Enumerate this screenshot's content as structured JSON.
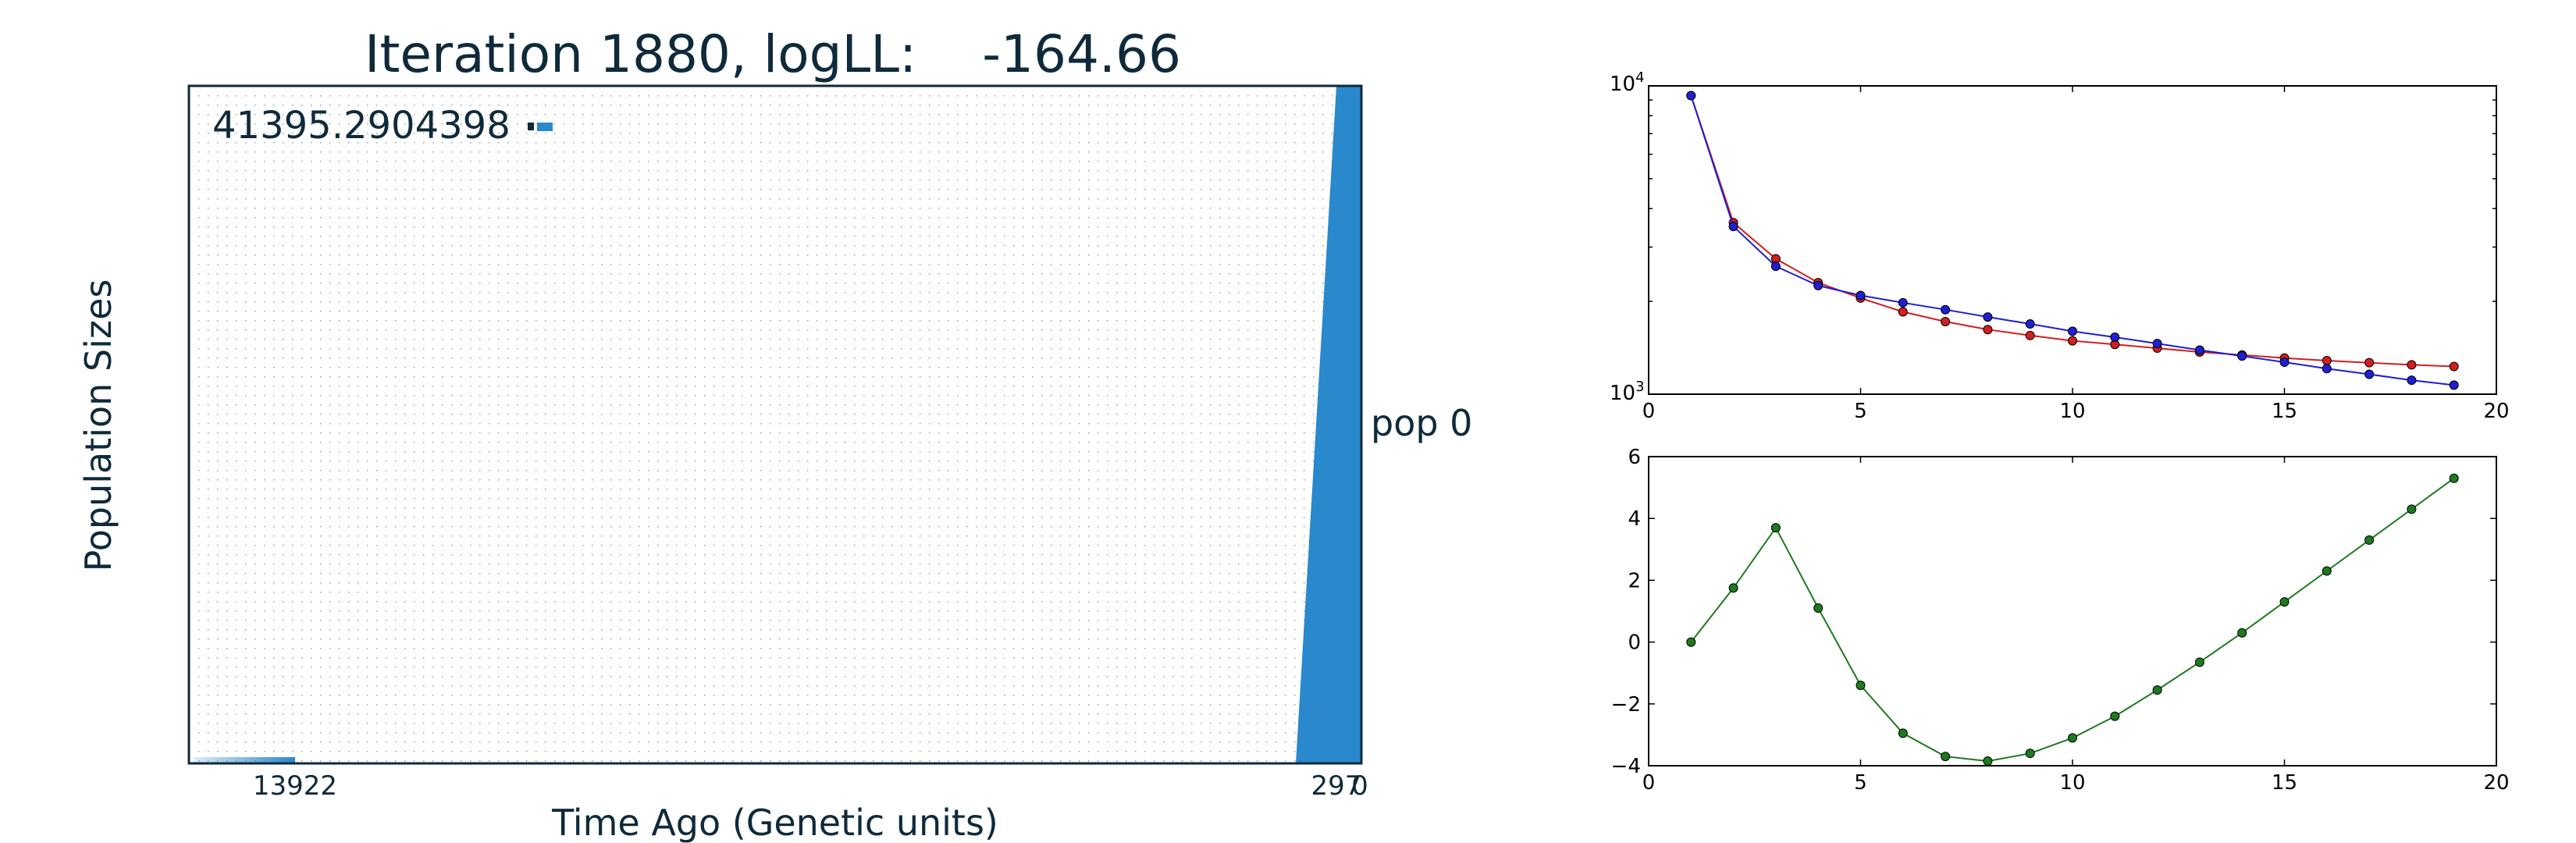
{
  "colors": {
    "text": "#0f2a3a",
    "fill": "#2a88cc",
    "red": "#d21f1f",
    "blue": "#1f1fd2",
    "green": "#1e7a1e"
  },
  "chart_data": [
    {
      "type": "area",
      "title": "Iteration 1880, logLL:    -164.66",
      "xlabel": "Time Ago (Genetic units)",
      "ylabel": "Population Sizes",
      "max_label": "41395.2904398",
      "x_tick_labels": [
        "13922",
        "297",
        "0"
      ],
      "population_label": "pop 0",
      "grid": true
    },
    {
      "type": "line",
      "yscale": "log",
      "xlim": [
        0,
        20
      ],
      "ylim": [
        1000,
        10000
      ],
      "x_ticks": [
        0,
        5,
        10,
        15,
        20
      ],
      "y_tick_labels": [
        {
          "base": "10",
          "exp": "4"
        },
        {
          "base": "10",
          "exp": "3"
        }
      ],
      "x": [
        1,
        2,
        3,
        4,
        5,
        6,
        7,
        8,
        9,
        10,
        11,
        12,
        13,
        14,
        15,
        16,
        17,
        18,
        19
      ],
      "series": [
        {
          "color": "red",
          "values": [
            9300,
            3600,
            2750,
            2300,
            2050,
            1850,
            1720,
            1620,
            1550,
            1490,
            1450,
            1410,
            1370,
            1340,
            1310,
            1285,
            1265,
            1245,
            1230
          ]
        },
        {
          "color": "blue",
          "values": [
            9300,
            3500,
            2600,
            2250,
            2090,
            1980,
            1880,
            1780,
            1690,
            1600,
            1530,
            1460,
            1390,
            1330,
            1270,
            1210,
            1160,
            1110,
            1070
          ]
        }
      ]
    },
    {
      "type": "line",
      "xlim": [
        0,
        20
      ],
      "ylim": [
        -4,
        6
      ],
      "x_ticks": [
        0,
        5,
        10,
        15,
        20
      ],
      "y_ticks": [
        -4,
        -2,
        0,
        2,
        4,
        6
      ],
      "y_tick_labels": [
        "−4",
        "−2",
        "0",
        "2",
        "4",
        "6"
      ],
      "x": [
        1,
        2,
        3,
        4,
        5,
        6,
        7,
        8,
        9,
        10,
        11,
        12,
        13,
        14,
        15,
        16,
        17,
        18,
        19
      ],
      "series": [
        {
          "color": "green",
          "values": [
            0,
            1.75,
            3.7,
            1.1,
            -1.4,
            -2.95,
            -3.7,
            -3.85,
            -3.6,
            -3.1,
            -2.4,
            -1.55,
            -0.65,
            0.3,
            1.3,
            2.3,
            3.3,
            4.3,
            5.3
          ]
        }
      ]
    }
  ]
}
